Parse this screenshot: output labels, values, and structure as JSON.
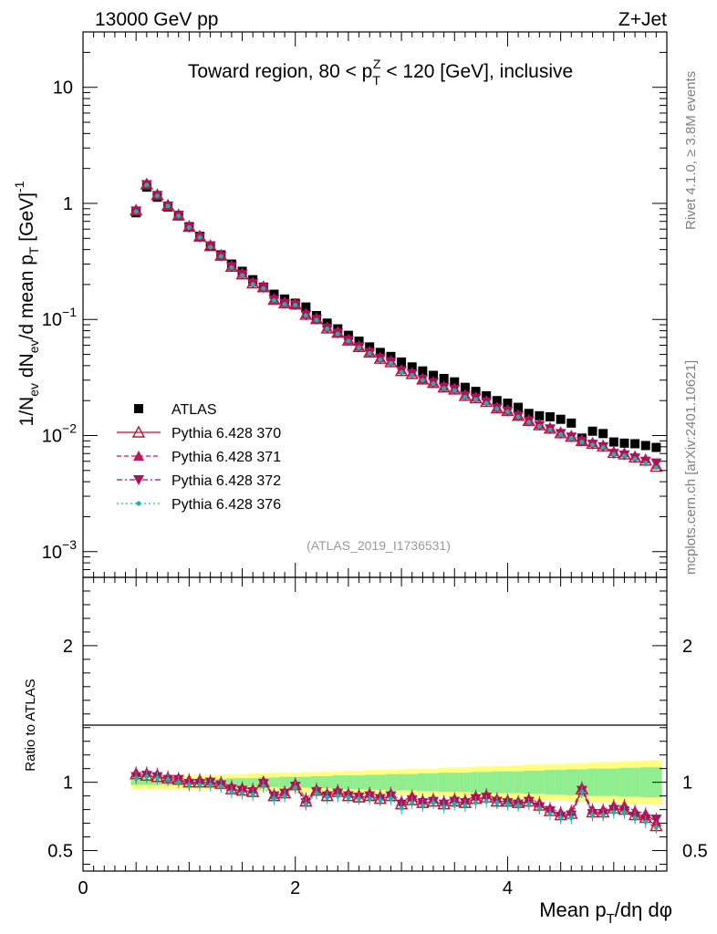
{
  "header": {
    "energy_label": "13000 GeV pp",
    "process_label": "Z+Jet"
  },
  "side_labels": {
    "rivet": "Rivet 4.1.0, ≥ 3.8M events",
    "mcplots": "mcplots.cern.ch [arXiv:2401.10621]"
  },
  "analysis_id": "(ATLAS_2019_I1736531)",
  "colors": {
    "data": "#000000",
    "p370": "#b2182b",
    "p371": "#c2185b",
    "p372": "#b0105a",
    "p376": "#20b2aa",
    "band_outer": "#ffff80",
    "band_inner": "#90ee90"
  },
  "chart_data": [
    {
      "type": "scatter",
      "panel": "main",
      "title": "Toward region, 80 < p_T^Z < 120 [GeV], inclusive",
      "title_parts": {
        "pre": "Toward region, 80 < p",
        "sub": "T",
        "sup": "Z",
        "post": " < 120 [GeV], inclusive"
      },
      "ylabel": "1/N_ev dN_ev/d mean p_T [GeV]^-1",
      "ylabel_parts": [
        "1/N",
        "ev",
        " dN",
        "ev",
        "/d mean p",
        "T",
        " [GeV]",
        "-1"
      ],
      "yscale": "log",
      "ylim": [
        0.0006,
        30
      ],
      "xlim": [
        0,
        5.5
      ],
      "y_ticks": [
        {
          "value": 10,
          "label": "10"
        },
        {
          "value": 1,
          "label": "1"
        },
        {
          "value": 0.1,
          "label": "10",
          "exp": "−1"
        },
        {
          "value": 0.01,
          "label": "10",
          "exp": "−2"
        },
        {
          "value": 0.001,
          "label": "10",
          "exp": "−3"
        }
      ],
      "x": [
        0.5,
        0.6,
        0.7,
        0.8,
        0.9,
        1.0,
        1.1,
        1.2,
        1.3,
        1.4,
        1.5,
        1.6,
        1.7,
        1.8,
        1.9,
        2.0,
        2.1,
        2.2,
        2.3,
        2.4,
        2.5,
        2.6,
        2.7,
        2.8,
        2.9,
        3.0,
        3.1,
        3.2,
        3.3,
        3.4,
        3.5,
        3.6,
        3.7,
        3.8,
        3.9,
        4.0,
        4.1,
        4.2,
        4.3,
        4.4,
        4.5,
        4.6,
        4.7,
        4.8,
        4.9,
        5.0,
        5.1,
        5.2,
        5.3,
        5.4
      ],
      "series": [
        {
          "name": "ATLAS",
          "values": [
            0.83,
            1.38,
            1.13,
            0.93,
            0.78,
            0.63,
            0.52,
            0.43,
            0.36,
            0.3,
            0.26,
            0.22,
            0.19,
            0.165,
            0.15,
            0.138,
            0.128,
            0.108,
            0.093,
            0.083,
            0.073,
            0.065,
            0.058,
            0.052,
            0.048,
            0.043,
            0.039,
            0.036,
            0.033,
            0.031,
            0.029,
            0.026,
            0.024,
            0.022,
            0.02,
            0.019,
            0.0175,
            0.0155,
            0.0148,
            0.0145,
            0.0138,
            0.0128,
            0.0095,
            0.0109,
            0.0104,
            0.0088,
            0.0086,
            0.0085,
            0.0082,
            0.0079
          ]
        },
        {
          "name": "Pythia 6.428 370",
          "values": [
            0.87,
            1.46,
            1.18,
            0.96,
            0.79,
            0.63,
            0.52,
            0.43,
            0.355,
            0.285,
            0.245,
            0.205,
            0.19,
            0.148,
            0.138,
            0.135,
            0.11,
            0.101,
            0.084,
            0.077,
            0.066,
            0.058,
            0.052,
            0.046,
            0.043,
            0.036,
            0.034,
            0.0305,
            0.0285,
            0.026,
            0.025,
            0.022,
            0.021,
            0.0195,
            0.0172,
            0.0163,
            0.0148,
            0.0134,
            0.0123,
            0.0115,
            0.0105,
            0.0098,
            0.009,
            0.0085,
            0.0081,
            0.0071,
            0.0069,
            0.0065,
            0.0061,
            0.0054
          ]
        },
        {
          "name": "Pythia 6.428 371",
          "values": [
            0.88,
            1.48,
            1.2,
            0.97,
            0.8,
            0.64,
            0.53,
            0.44,
            0.36,
            0.29,
            0.25,
            0.21,
            0.19,
            0.15,
            0.14,
            0.136,
            0.112,
            0.102,
            0.086,
            0.078,
            0.067,
            0.059,
            0.053,
            0.047,
            0.044,
            0.037,
            0.035,
            0.031,
            0.029,
            0.0265,
            0.0255,
            0.0225,
            0.0215,
            0.02,
            0.0175,
            0.0166,
            0.015,
            0.0136,
            0.0125,
            0.0117,
            0.0107,
            0.01,
            0.0091,
            0.0087,
            0.0083,
            0.0073,
            0.0071,
            0.0067,
            0.0063,
            0.0056
          ]
        },
        {
          "name": "Pythia 6.428 372",
          "values": [
            0.86,
            1.45,
            1.17,
            0.95,
            0.79,
            0.62,
            0.51,
            0.43,
            0.35,
            0.285,
            0.245,
            0.205,
            0.188,
            0.148,
            0.137,
            0.134,
            0.109,
            0.1,
            0.084,
            0.076,
            0.066,
            0.058,
            0.052,
            0.046,
            0.043,
            0.036,
            0.034,
            0.0305,
            0.0285,
            0.026,
            0.025,
            0.022,
            0.021,
            0.0195,
            0.0172,
            0.0162,
            0.0147,
            0.0133,
            0.0122,
            0.0114,
            0.0104,
            0.0097,
            0.0089,
            0.0084,
            0.008,
            0.007,
            0.0068,
            0.0064,
            0.006,
            0.0058
          ]
        },
        {
          "name": "Pythia 6.428 376",
          "values": [
            0.85,
            1.44,
            1.16,
            0.95,
            0.78,
            0.62,
            0.51,
            0.42,
            0.35,
            0.28,
            0.24,
            0.2,
            0.185,
            0.146,
            0.135,
            0.133,
            0.108,
            0.099,
            0.083,
            0.075,
            0.065,
            0.057,
            0.051,
            0.045,
            0.042,
            0.035,
            0.033,
            0.03,
            0.028,
            0.0255,
            0.0245,
            0.0215,
            0.0205,
            0.019,
            0.017,
            0.016,
            0.0145,
            0.013,
            0.012,
            0.0112,
            0.0102,
            0.0095,
            0.0088,
            0.0083,
            0.0079,
            0.0069,
            0.0067,
            0.0063,
            0.0058,
            0.0053
          ]
        }
      ],
      "legend": [
        {
          "label": "ATLAS",
          "style": "data"
        },
        {
          "label": "Pythia 6.428 370",
          "style": "p370"
        },
        {
          "label": "Pythia 6.428 371",
          "style": "p371"
        },
        {
          "label": "Pythia 6.428 372",
          "style": "p372"
        },
        {
          "label": "Pythia 6.428 376",
          "style": "p376"
        }
      ],
      "legend_position": "left, lower half"
    },
    {
      "type": "scatter",
      "panel": "ratio",
      "ylabel": "Ratio to ATLAS",
      "xlabel": "Mean p_T/dη dφ",
      "xlabel_parts": {
        "pre": "Mean p",
        "sub": "T",
        "post": "/dη dφ"
      },
      "ylim": [
        0.35,
        2.5
      ],
      "xlim": [
        0,
        5.5
      ],
      "x_ticks": [
        {
          "value": 0,
          "label": "0"
        },
        {
          "value": 2,
          "label": "2"
        },
        {
          "value": 4,
          "label": "4"
        }
      ],
      "y_ticks": [
        {
          "value": 0.5,
          "label": "0.5"
        },
        {
          "value": 1,
          "label": "1"
        },
        {
          "value": 2,
          "label": "2"
        }
      ],
      "band_outer_halfwidth": [
        0.05,
        0.05,
        0.05,
        0.05,
        0.05,
        0.05,
        0.05,
        0.05,
        0.055,
        0.06,
        0.06,
        0.065,
        0.065,
        0.07,
        0.07,
        0.07,
        0.075,
        0.075,
        0.08,
        0.08,
        0.085,
        0.085,
        0.09,
        0.09,
        0.09,
        0.095,
        0.1,
        0.1,
        0.1,
        0.105,
        0.11,
        0.11,
        0.115,
        0.115,
        0.12,
        0.12,
        0.125,
        0.13,
        0.13,
        0.13,
        0.135,
        0.14,
        0.14,
        0.145,
        0.15,
        0.15,
        0.155,
        0.155,
        0.16,
        0.165
      ],
      "band_inner_halfwidth": [
        0.02,
        0.02,
        0.02,
        0.02,
        0.02,
        0.02,
        0.02,
        0.02,
        0.025,
        0.03,
        0.03,
        0.03,
        0.035,
        0.035,
        0.04,
        0.04,
        0.04,
        0.045,
        0.045,
        0.05,
        0.05,
        0.05,
        0.055,
        0.055,
        0.06,
        0.06,
        0.06,
        0.065,
        0.065,
        0.07,
        0.07,
        0.07,
        0.075,
        0.075,
        0.08,
        0.08,
        0.08,
        0.085,
        0.085,
        0.09,
        0.09,
        0.095,
        0.095,
        0.1,
        0.1,
        0.1,
        0.105,
        0.105,
        0.11,
        0.11
      ],
      "series": [
        {
          "name": "Pythia 6.428 370",
          "values": [
            1.06,
            1.05,
            1.04,
            1.03,
            1.02,
            1.0,
            1.0,
            1.0,
            0.99,
            0.95,
            0.94,
            0.93,
            1.0,
            0.9,
            0.92,
            0.98,
            0.86,
            0.94,
            0.9,
            0.93,
            0.9,
            0.89,
            0.9,
            0.88,
            0.9,
            0.84,
            0.87,
            0.85,
            0.86,
            0.84,
            0.86,
            0.85,
            0.88,
            0.89,
            0.86,
            0.86,
            0.85,
            0.86,
            0.83,
            0.79,
            0.76,
            0.77,
            0.95,
            0.78,
            0.78,
            0.81,
            0.8,
            0.76,
            0.74,
            0.68
          ]
        },
        {
          "name": "Pythia 6.428 371",
          "values": [
            1.07,
            1.07,
            1.06,
            1.04,
            1.03,
            1.02,
            1.02,
            1.01,
            1.0,
            0.97,
            0.96,
            0.95,
            1.0,
            0.91,
            0.93,
            0.99,
            0.88,
            0.95,
            0.92,
            0.94,
            0.92,
            0.91,
            0.92,
            0.9,
            0.92,
            0.86,
            0.9,
            0.87,
            0.88,
            0.86,
            0.88,
            0.87,
            0.9,
            0.91,
            0.88,
            0.87,
            0.86,
            0.88,
            0.85,
            0.81,
            0.78,
            0.79,
            0.96,
            0.8,
            0.8,
            0.83,
            0.83,
            0.79,
            0.77,
            0.71
          ]
        },
        {
          "name": "Pythia 6.428 372",
          "values": [
            1.04,
            1.05,
            1.04,
            1.02,
            1.02,
            0.99,
            0.99,
            1.0,
            0.98,
            0.95,
            0.94,
            0.93,
            0.99,
            0.9,
            0.92,
            0.97,
            0.85,
            0.93,
            0.9,
            0.92,
            0.9,
            0.89,
            0.9,
            0.88,
            0.9,
            0.84,
            0.87,
            0.85,
            0.86,
            0.84,
            0.86,
            0.85,
            0.88,
            0.89,
            0.86,
            0.85,
            0.84,
            0.86,
            0.82,
            0.79,
            0.75,
            0.76,
            0.94,
            0.77,
            0.77,
            0.8,
            0.79,
            0.75,
            0.73,
            0.73
          ]
        },
        {
          "name": "Pythia 6.428 376",
          "values": [
            1.03,
            1.04,
            1.03,
            1.02,
            1.0,
            0.98,
            0.98,
            0.98,
            0.97,
            0.93,
            0.92,
            0.91,
            0.97,
            0.88,
            0.9,
            0.96,
            0.84,
            0.92,
            0.89,
            0.9,
            0.89,
            0.88,
            0.88,
            0.87,
            0.88,
            0.81,
            0.85,
            0.83,
            0.85,
            0.82,
            0.84,
            0.83,
            0.85,
            0.86,
            0.85,
            0.84,
            0.83,
            0.84,
            0.81,
            0.77,
            0.74,
            0.74,
            0.93,
            0.76,
            0.76,
            0.78,
            0.78,
            0.74,
            0.71,
            0.67
          ]
        }
      ]
    }
  ]
}
